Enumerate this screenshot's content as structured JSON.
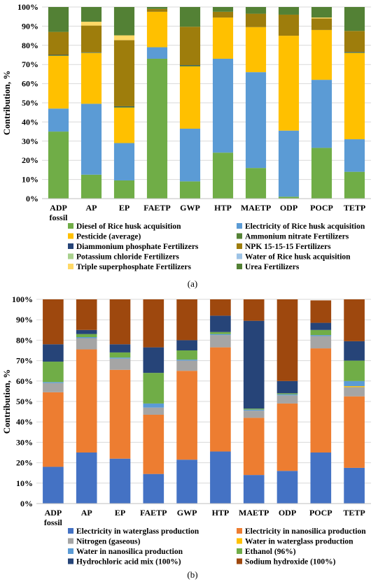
{
  "chart_data": [
    {
      "type": "bar",
      "stacked": true,
      "panel_label": "(a)",
      "ylabel": "Contribution, %",
      "ylim": [
        0,
        100
      ],
      "y_ticks": [
        "0%",
        "10%",
        "20%",
        "30%",
        "40%",
        "50%",
        "60%",
        "70%",
        "80%",
        "90%",
        "100%"
      ],
      "categories": [
        [
          "ADP",
          "fossil"
        ],
        [
          "AP"
        ],
        [
          "EP"
        ],
        [
          "FAETP"
        ],
        [
          "GWP"
        ],
        [
          "HTP"
        ],
        [
          "MAETP"
        ],
        [
          "ODP"
        ],
        [
          "POCP"
        ],
        [
          "TETP"
        ]
      ],
      "series": [
        {
          "name": "Diesel of Rice husk acquisition",
          "color": "#70ad47",
          "values": [
            35,
            12.5,
            9.5,
            73,
            9,
            24,
            16,
            1,
            26.5,
            14
          ]
        },
        {
          "name": "Electricity of Rice husk acquisition",
          "color": "#5b9bd5",
          "values": [
            12,
            37,
            19.5,
            6,
            27.5,
            49,
            50,
            34.5,
            35.5,
            17
          ]
        },
        {
          "name": "Pesticide (average)",
          "color": "#ffc000",
          "values": [
            27.5,
            26.5,
            18.5,
            18.5,
            32.5,
            21.5,
            23.5,
            49.5,
            26,
            45
          ]
        },
        {
          "name": "Ammonium nitrate Fertilizers",
          "color": "#548235",
          "values": [
            0.3,
            0.2,
            0.5,
            0,
            0.5,
            0,
            0,
            0,
            0,
            0.3
          ]
        },
        {
          "name": "Diammonium phosphate Fertilizers",
          "color": "#264478",
          "values": [
            0.2,
            0.1,
            0.2,
            0,
            0.2,
            0,
            0,
            0,
            0,
            0.2
          ]
        },
        {
          "name": "NPK 15-15-15 Fertilizers",
          "color": "#9e7d0c",
          "values": [
            12,
            14,
            34.5,
            1.5,
            20,
            3,
            7,
            11,
            6,
            11
          ]
        },
        {
          "name": "Potassium chloride Fertilizers",
          "color": "#a9d18e",
          "values": [
            0,
            0,
            0,
            0,
            0,
            0,
            0,
            0,
            0,
            0
          ]
        },
        {
          "name": "Water of Rice husk acquisition",
          "color": "#9dc3e6",
          "values": [
            0,
            0,
            0,
            0,
            0,
            0,
            0,
            0,
            0,
            0
          ]
        },
        {
          "name": "Triple superphosphate Fertilizers",
          "color": "#ffd966",
          "values": [
            0,
            2,
            2.5,
            0,
            0,
            0,
            0,
            0,
            0.5,
            0
          ]
        },
        {
          "name": "Urea Fertilizers",
          "color": "#538135",
          "values": [
            13,
            7.7,
            14.8,
            1,
            10.3,
            2.5,
            3.5,
            4,
            5.5,
            12.5
          ]
        }
      ]
    },
    {
      "type": "bar",
      "stacked": true,
      "panel_label": "(b)",
      "ylabel": "Contribution, %",
      "ylim": [
        0,
        100
      ],
      "y_ticks": [
        "0%",
        "10%",
        "20%",
        "30%",
        "40%",
        "50%",
        "60%",
        "70%",
        "80%",
        "90%",
        "100%"
      ],
      "categories": [
        [
          "ADP",
          "fossil"
        ],
        [
          "AP"
        ],
        [
          "EP"
        ],
        [
          "FAETP"
        ],
        [
          "GWP"
        ],
        [
          "HTP"
        ],
        [
          "MAETP"
        ],
        [
          "ODP"
        ],
        [
          "POCP"
        ],
        [
          "TETP"
        ]
      ],
      "series": [
        {
          "name": "Electricity in waterglass production",
          "color": "#4472c4",
          "values": [
            18,
            25,
            22,
            14.5,
            21.5,
            25.5,
            14,
            16,
            25,
            17.5
          ]
        },
        {
          "name": "Electricity in nanosilica production",
          "color": "#ed7d31",
          "values": [
            36.5,
            50.5,
            43.5,
            29,
            43.5,
            51,
            28,
            33,
            51,
            35
          ]
        },
        {
          "name": "Nitrogen (gaseous)",
          "color": "#a5a5a5",
          "values": [
            4.5,
            5.5,
            5.5,
            3.5,
            5,
            6,
            3.5,
            4,
            6,
            4.5
          ]
        },
        {
          "name": "Water in waterglass production",
          "color": "#ffc000",
          "values": [
            0,
            0,
            0,
            0,
            0,
            0,
            0,
            0,
            0,
            0.5
          ]
        },
        {
          "name": "Water in nanosilica production",
          "color": "#5b9bd5",
          "values": [
            0.5,
            0.5,
            0.5,
            2,
            0.5,
            0.5,
            0.5,
            0.5,
            0.5,
            2.5
          ]
        },
        {
          "name": "Ethanol (96%)",
          "color": "#70ad47",
          "values": [
            10,
            1.5,
            2.5,
            15,
            4.5,
            1,
            0.5,
            0.5,
            2.5,
            10
          ]
        },
        {
          "name": "Hydrochloric acid mix (100%)",
          "color": "#264478",
          "values": [
            8.5,
            2,
            4,
            12.5,
            5,
            8,
            43,
            6,
            3.5,
            9.5
          ]
        },
        {
          "name": "Sodium hydroxide (100%)",
          "color": "#9e480e",
          "values": [
            22,
            15,
            22,
            23.5,
            20,
            8,
            10.5,
            40,
            11,
            20.5
          ]
        }
      ]
    }
  ]
}
